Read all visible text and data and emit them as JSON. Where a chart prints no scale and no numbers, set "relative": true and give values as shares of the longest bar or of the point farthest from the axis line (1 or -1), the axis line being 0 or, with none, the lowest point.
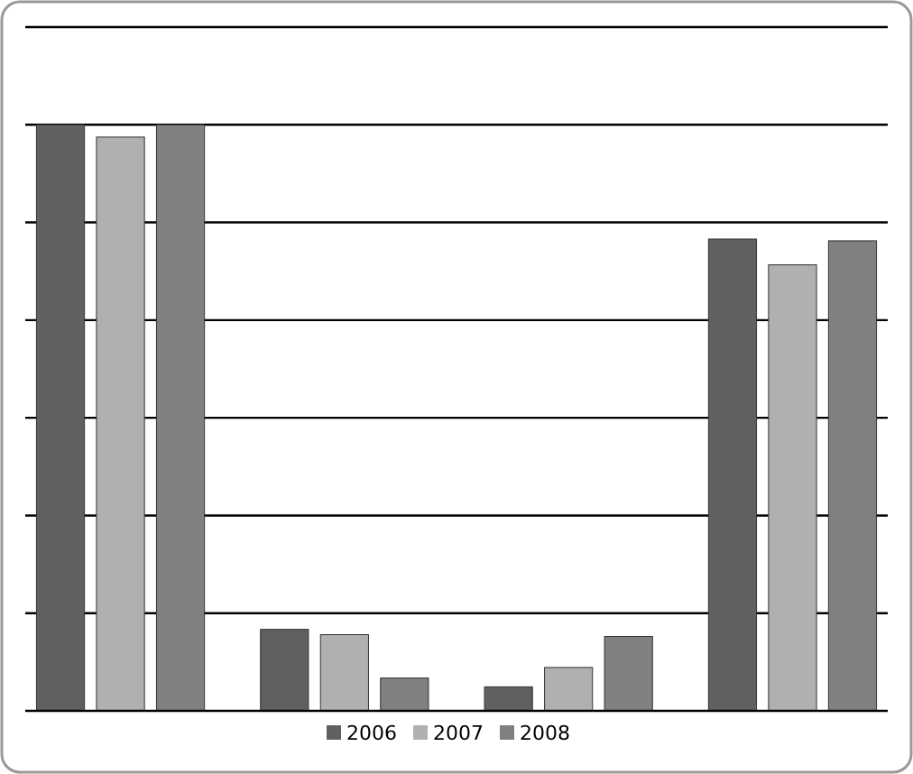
{
  "chart_data": {
    "type": "bar",
    "relative": true,
    "grid": true,
    "legend": "bottom",
    "categories": [
      null,
      null,
      null,
      null
    ],
    "series": [
      {
        "name": "2006",
        "color": "#606060",
        "values": [
          1,
          0.139,
          0.041,
          0.805
        ]
      },
      {
        "name": "2007",
        "color": "#b0b0b0",
        "values": [
          0.979,
          0.13,
          0.074,
          0.761
        ]
      },
      {
        "name": "2008",
        "color": "#808080",
        "values": [
          1,
          0.056,
          0.127,
          0.802
        ]
      }
    ]
  }
}
